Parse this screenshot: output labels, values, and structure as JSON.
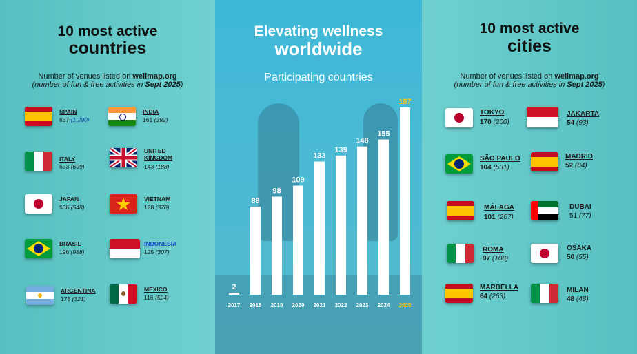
{
  "left": {
    "title_line1": "10 most active",
    "title_line2": "countries",
    "subtitle_prefix": "Number of venues listed on ",
    "subtitle_site": "wellmap.org",
    "subtitle_line2_prefix": "(number of fun & free activities in ",
    "subtitle_line2_bold": "Sept 2025",
    "subtitle_line2_suffix": ")",
    "items": [
      {
        "name": "SPAIN",
        "count": "637",
        "paren": "(1,290)"
      },
      {
        "name": "INDIA",
        "count": "161",
        "paren": "(392)"
      },
      {
        "name": "ITALY",
        "count": "633",
        "paren": "(699)"
      },
      {
        "name": "UNITED KINGDOM",
        "count": "143",
        "paren": "(188)"
      },
      {
        "name": "JAPAN",
        "count": "506",
        "paren": "(548)"
      },
      {
        "name": "VIETNAM",
        "count": "128",
        "paren": "(370)"
      },
      {
        "name": "BRASIL",
        "count": "196",
        "paren": "(988)"
      },
      {
        "name": "INDONESIA",
        "count": "125",
        "paren": "(307)"
      },
      {
        "name": "ARGENTINA",
        "count": "178",
        "paren": "(321)"
      },
      {
        "name": "MEXICO",
        "count": "116",
        "paren": "(524)"
      }
    ]
  },
  "middle": {
    "title_line1": "Elevating wellness",
    "title_line2": "worldwide",
    "chart_title": "Participating countries"
  },
  "chart_data": {
    "type": "bar",
    "title": "Participating countries",
    "categories": [
      "2017",
      "2018",
      "2019",
      "2020",
      "2021",
      "2022",
      "2023",
      "2024",
      "2025"
    ],
    "values": [
      2,
      88,
      98,
      109,
      133,
      139,
      148,
      155,
      187
    ],
    "highlight_color": "#f5c518",
    "bar_color": "#ffffff",
    "xlabel": "",
    "ylabel": ""
  },
  "right": {
    "title_line1": "10 most active",
    "title_line2": "cities",
    "subtitle_prefix": "Number of venues listed on ",
    "subtitle_site": "wellmap.org",
    "subtitle_line2_prefix": "(number of fun & free activities in ",
    "subtitle_line2_bold": "Sept 2025",
    "subtitle_line2_suffix": ")",
    "items": [
      {
        "name": "TOKYO",
        "count": "170",
        "paren": "(200)"
      },
      {
        "name": "JAKARTA",
        "count": "54",
        "paren": "(93)"
      },
      {
        "name": "SÃO PAULO",
        "count": "104",
        "paren": "(531)"
      },
      {
        "name": "MADRID",
        "count": "52",
        "paren": "(84)"
      },
      {
        "name": "MÁLAGA",
        "count": "101",
        "paren": "(207)"
      },
      {
        "name": "DUBAI",
        "count": "51",
        "paren": "(77)"
      },
      {
        "name": "ROMA",
        "count": "97",
        "paren": "(108)"
      },
      {
        "name": "OSAKA",
        "count": "50",
        "paren": "(55)"
      },
      {
        "name": "MARBELLA",
        "count": "64",
        "paren": "(263)"
      },
      {
        "name": "MILAN",
        "count": "48",
        "paren": "(48)"
      }
    ]
  }
}
